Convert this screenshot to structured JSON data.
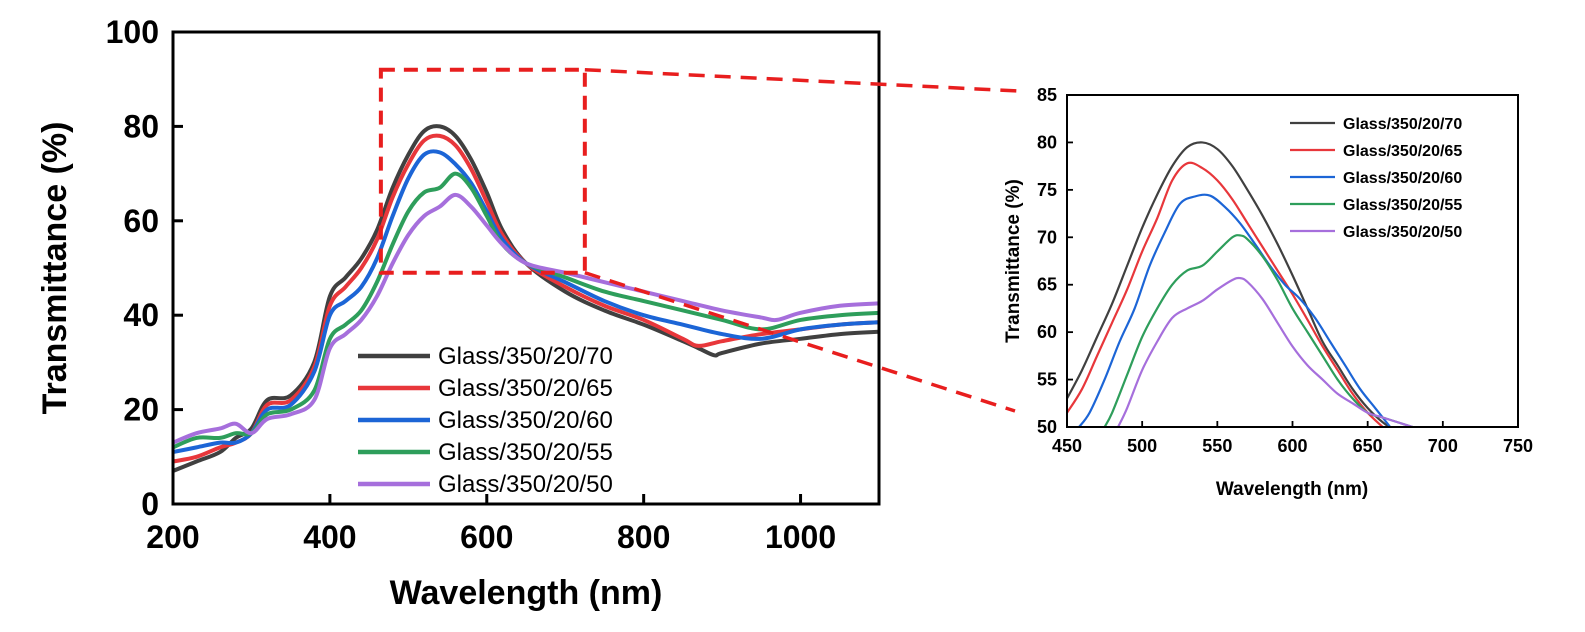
{
  "chart_data": [
    {
      "type": "line",
      "title": "",
      "xlabel": "Wavelength (nm)",
      "ylabel": "Transmittance (%)",
      "xlim": [
        200,
        1100
      ],
      "ylim": [
        0,
        100
      ],
      "xticks": [
        200,
        400,
        600,
        800,
        1000
      ],
      "yticks": [
        0,
        20,
        40,
        60,
        80,
        100
      ],
      "grid": false,
      "legend_position": "bottom-center",
      "zoom_box": {
        "x": [
          465,
          725
        ],
        "y": [
          49,
          92
        ]
      },
      "series": [
        {
          "name": "Glass/350/20/70",
          "color": "#404040",
          "x": [
            200,
            230,
            260,
            280,
            300,
            320,
            350,
            380,
            400,
            420,
            440,
            460,
            480,
            500,
            520,
            540,
            560,
            580,
            600,
            620,
            650,
            700,
            750,
            800,
            850,
            870,
            890,
            900,
            950,
            1000,
            1050,
            1100
          ],
          "y": [
            7,
            9,
            11,
            14,
            16,
            22,
            23,
            30,
            44,
            48,
            52,
            58,
            67,
            74,
            79,
            80,
            78,
            73,
            66,
            58,
            51,
            45,
            41,
            38,
            34.5,
            33,
            31.5,
            32,
            34,
            35,
            36,
            36.5
          ]
        },
        {
          "name": "Glass/350/20/65",
          "color": "#e8373b",
          "x": [
            200,
            230,
            260,
            280,
            300,
            320,
            350,
            380,
            400,
            420,
            440,
            460,
            480,
            500,
            520,
            540,
            560,
            580,
            600,
            620,
            650,
            700,
            750,
            800,
            850,
            870,
            900,
            950,
            1000,
            1050,
            1100
          ],
          "y": [
            9,
            10,
            12,
            13,
            15,
            21,
            22,
            29,
            42,
            46,
            50,
            56,
            65,
            72,
            77,
            78,
            76,
            71,
            64,
            57,
            51,
            46,
            42,
            39,
            35,
            33.5,
            34.5,
            36,
            37,
            38,
            38.5
          ]
        },
        {
          "name": "Glass/350/20/60",
          "color": "#1c65d6",
          "x": [
            200,
            230,
            260,
            280,
            300,
            320,
            350,
            380,
            400,
            420,
            440,
            460,
            480,
            500,
            520,
            540,
            560,
            580,
            600,
            620,
            650,
            700,
            750,
            800,
            850,
            900,
            950,
            1000,
            1050,
            1100
          ],
          "y": [
            11,
            12,
            13,
            13,
            15,
            20,
            21,
            28,
            40,
            43,
            46,
            52,
            61,
            69,
            74,
            74.5,
            72,
            68,
            62,
            56,
            51,
            47,
            43,
            40,
            38,
            36,
            35,
            37,
            38,
            38.5
          ]
        },
        {
          "name": "Glass/350/20/55",
          "color": "#2e9e5b",
          "x": [
            200,
            230,
            260,
            280,
            300,
            320,
            350,
            380,
            400,
            420,
            440,
            460,
            480,
            500,
            520,
            540,
            560,
            580,
            600,
            620,
            650,
            700,
            750,
            800,
            850,
            900,
            950,
            1000,
            1050,
            1100
          ],
          "y": [
            12,
            14,
            14,
            15,
            15,
            19,
            20,
            24,
            35,
            38,
            41,
            47,
            55,
            62,
            66,
            67,
            70,
            67,
            61,
            55,
            51,
            48,
            45,
            43,
            41,
            39,
            37,
            39,
            40,
            40.5
          ]
        },
        {
          "name": "Glass/350/20/50",
          "color": "#a66fdc",
          "x": [
            200,
            230,
            260,
            280,
            300,
            320,
            350,
            380,
            400,
            420,
            440,
            460,
            480,
            500,
            520,
            540,
            560,
            580,
            600,
            620,
            650,
            700,
            750,
            800,
            850,
            900,
            950,
            970,
            1000,
            1050,
            1100
          ],
          "y": [
            13,
            15,
            16,
            17,
            15,
            18,
            19,
            22,
            33,
            36,
            39,
            44,
            51,
            57,
            61,
            63,
            65.5,
            63,
            59,
            55,
            51,
            49,
            47,
            45,
            43,
            41,
            39.5,
            39,
            40.5,
            42,
            42.5
          ]
        }
      ]
    },
    {
      "type": "line",
      "title": "",
      "xlabel": "Wavelength (nm)",
      "ylabel": "Transmittance (%)",
      "xlim": [
        450,
        750
      ],
      "ylim": [
        50,
        85
      ],
      "xticks": [
        450,
        500,
        550,
        600,
        650,
        700,
        750
      ],
      "yticks": [
        50,
        55,
        60,
        65,
        70,
        75,
        80,
        85
      ],
      "grid": false,
      "legend_position": "top-right",
      "series": [
        {
          "name": "Glass/350/20/70",
          "color": "#404040",
          "x": [
            450,
            460,
            470,
            480,
            490,
            500,
            510,
            520,
            530,
            540,
            550,
            560,
            570,
            580,
            590,
            600,
            610,
            620,
            630,
            640,
            650,
            660,
            670,
            680
          ],
          "y": [
            53,
            56,
            59.5,
            63,
            67,
            71,
            74.5,
            77.5,
            79.5,
            80,
            79.3,
            77.5,
            75,
            72.3,
            69.3,
            66,
            62.5,
            59,
            56.5,
            54,
            52,
            50.5,
            49.5,
            49
          ]
        },
        {
          "name": "Glass/350/20/65",
          "color": "#e8373b",
          "x": [
            450,
            460,
            470,
            480,
            490,
            500,
            510,
            520,
            530,
            540,
            550,
            560,
            570,
            580,
            590,
            600,
            610,
            620,
            630,
            640,
            650,
            660
          ],
          "y": [
            51.5,
            54,
            57.5,
            61,
            64.5,
            68.5,
            72,
            76,
            77.8,
            77.3,
            76,
            74,
            71.5,
            69,
            66.5,
            64,
            61.3,
            58.5,
            56,
            53.5,
            51.5,
            50
          ]
        },
        {
          "name": "Glass/350/20/60",
          "color": "#1c65d6",
          "x": [
            458,
            465,
            475,
            485,
            495,
            505,
            515,
            525,
            535,
            545,
            555,
            565,
            575,
            585,
            595,
            605,
            615,
            625,
            635,
            645,
            655,
            665
          ],
          "y": [
            50,
            51.5,
            55,
            59,
            62.5,
            67,
            70.5,
            73.5,
            74.3,
            74.4,
            73.2,
            71.5,
            69.3,
            67,
            65,
            63.5,
            61.5,
            59,
            56.5,
            54,
            52,
            50
          ]
        },
        {
          "name": "Glass/350/20/55",
          "color": "#2e9e5b",
          "x": [
            475,
            480,
            490,
            500,
            510,
            520,
            530,
            540,
            550,
            560,
            565,
            570,
            580,
            590,
            600,
            610,
            620,
            630,
            640,
            650,
            660,
            670,
            680
          ],
          "y": [
            50,
            51.5,
            55.5,
            59.5,
            62.5,
            65,
            66.5,
            67,
            68.5,
            70,
            70.2,
            69.8,
            68,
            65.5,
            62.5,
            60,
            57.5,
            55,
            53,
            51.5,
            51,
            50.5,
            50
          ]
        },
        {
          "name": "Glass/350/20/50",
          "color": "#a66fdc",
          "x": [
            484,
            490,
            500,
            510,
            520,
            530,
            540,
            550,
            560,
            565,
            570,
            580,
            590,
            600,
            610,
            620,
            630,
            640,
            650,
            660,
            670,
            680
          ],
          "y": [
            50,
            52,
            56,
            59,
            61.5,
            62.5,
            63.3,
            64.5,
            65.5,
            65.7,
            65.3,
            63.5,
            61,
            58.5,
            56.5,
            55,
            53.5,
            52.5,
            51.5,
            51,
            50.5,
            50
          ]
        }
      ]
    }
  ]
}
